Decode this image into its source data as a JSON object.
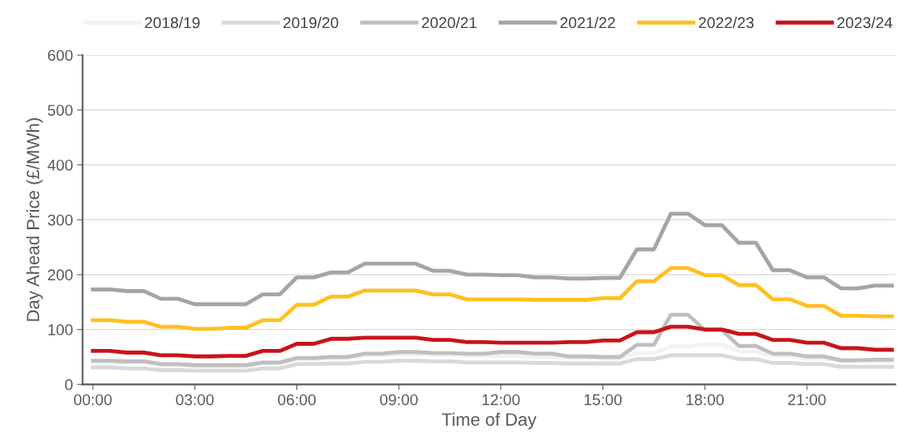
{
  "chart_data": {
    "type": "line",
    "ylabel": "Day Ahead Price (£/MWh)",
    "xlabel": "Time of Day",
    "x": [
      0,
      0.5,
      1,
      1.5,
      2,
      2.5,
      3,
      3.5,
      4,
      4.5,
      5,
      5.5,
      6,
      6.5,
      7,
      7.5,
      8,
      8.5,
      9,
      9.5,
      10,
      10.5,
      11,
      11.5,
      12,
      12.5,
      13,
      13.5,
      14,
      14.5,
      15,
      15.5,
      16,
      16.5,
      17,
      17.5,
      18,
      18.5,
      19,
      19.5,
      20,
      20.5,
      21,
      21.5,
      22,
      22.5,
      23,
      23.5
    ],
    "series": [
      {
        "name": "2018/19",
        "color": "#f2f2f2",
        "values": [
          41,
          41,
          40,
          40,
          35,
          35,
          33,
          33,
          33,
          33,
          38,
          38,
          46,
          46,
          48,
          48,
          53,
          53,
          55,
          55,
          54,
          54,
          52,
          52,
          52,
          52,
          50,
          50,
          48,
          48,
          47,
          47,
          57,
          57,
          69,
          69,
          73,
          73,
          60,
          60,
          52,
          52,
          47,
          47,
          42,
          42,
          42,
          42
        ]
      },
      {
        "name": "2019/20",
        "color": "#d9d9d9",
        "values": [
          31,
          31,
          29,
          29,
          26,
          26,
          25,
          25,
          25,
          25,
          29,
          29,
          37,
          37,
          38,
          38,
          41,
          41,
          43,
          43,
          42,
          42,
          40,
          40,
          40,
          40,
          39,
          39,
          38,
          38,
          38,
          38,
          46,
          46,
          53,
          53,
          53,
          53,
          46,
          46,
          39,
          39,
          37,
          37,
          32,
          32,
          32,
          32
        ]
      },
      {
        "name": "2020/21",
        "color": "#bfbfbf",
        "values": [
          43,
          43,
          42,
          42,
          37,
          37,
          35,
          35,
          35,
          35,
          40,
          40,
          48,
          48,
          50,
          50,
          56,
          56,
          59,
          59,
          57,
          57,
          56,
          56,
          59,
          59,
          56,
          56,
          51,
          51,
          50,
          50,
          72,
          72,
          127,
          127,
          99,
          99,
          70,
          70,
          56,
          56,
          51,
          51,
          44,
          44,
          45,
          45
        ]
      },
      {
        "name": "2021/22",
        "color": "#a5a5a5",
        "values": [
          173,
          173,
          170,
          170,
          156,
          156,
          146,
          146,
          146,
          146,
          164,
          164,
          195,
          195,
          204,
          204,
          220,
          220,
          220,
          220,
          207,
          207,
          200,
          200,
          199,
          199,
          195,
          195,
          193,
          193,
          194,
          194,
          246,
          246,
          311,
          311,
          290,
          290,
          258,
          258,
          208,
          208,
          195,
          195,
          175,
          175,
          180,
          180
        ]
      },
      {
        "name": "2022/23",
        "color": "#ffc020",
        "values": [
          117,
          117,
          114,
          114,
          105,
          105,
          101,
          101,
          103,
          103,
          117,
          117,
          145,
          145,
          160,
          160,
          171,
          171,
          171,
          171,
          164,
          164,
          155,
          155,
          155,
          155,
          154,
          154,
          154,
          154,
          157,
          157,
          188,
          188,
          212,
          212,
          199,
          199,
          181,
          181,
          155,
          155,
          143,
          143,
          125,
          125,
          124,
          124
        ]
      },
      {
        "name": "2023/24",
        "color": "#c8141a",
        "values": [
          61,
          61,
          58,
          58,
          53,
          53,
          51,
          51,
          52,
          52,
          61,
          61,
          74,
          74,
          83,
          83,
          85,
          85,
          85,
          85,
          81,
          81,
          77,
          77,
          76,
          76,
          76,
          76,
          77,
          77,
          80,
          80,
          95,
          95,
          105,
          105,
          100,
          100,
          92,
          92,
          81,
          81,
          76,
          76,
          66,
          66,
          63,
          63
        ]
      }
    ],
    "xlim": [
      -0.3,
      23.6
    ],
    "xticks": [
      {
        "value": 0,
        "label": "00:00"
      },
      {
        "value": 3,
        "label": "03:00"
      },
      {
        "value": 6,
        "label": "06:00"
      },
      {
        "value": 9,
        "label": "09:00"
      },
      {
        "value": 12,
        "label": "12:00"
      },
      {
        "value": 15,
        "label": "15:00"
      },
      {
        "value": 18,
        "label": "18:00"
      },
      {
        "value": 21,
        "label": "21:00"
      }
    ],
    "ylim": [
      0,
      600
    ],
    "yticks": [
      0,
      100,
      200,
      300,
      400,
      500,
      600
    ],
    "grid": "y",
    "legend": "top",
    "marker": "none",
    "line_style": "solid"
  }
}
